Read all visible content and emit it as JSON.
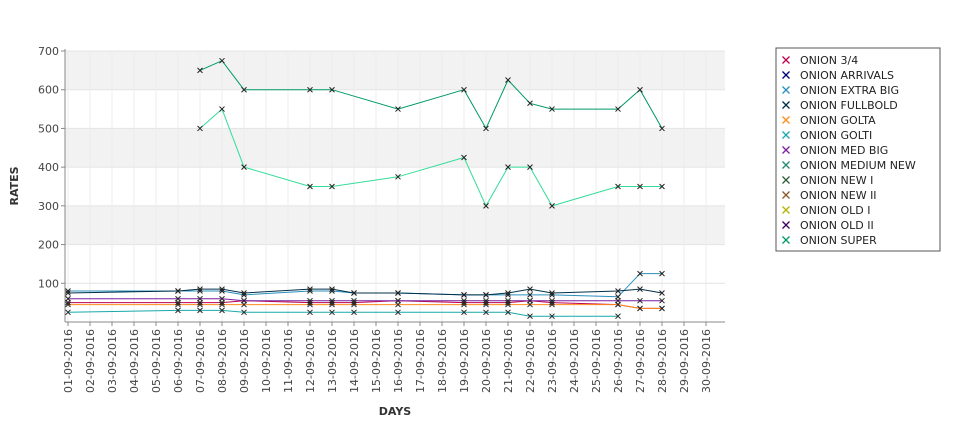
{
  "chart_data": {
    "type": "line",
    "title": "",
    "xlabel": "DAYS",
    "ylabel": "RATES",
    "ylim": [
      0,
      700
    ],
    "yticks": [
      100,
      200,
      300,
      400,
      500,
      600,
      700
    ],
    "grid": "alternating horizontal bands",
    "legend_position": "right",
    "x": [
      "01-09-2016",
      "02-09-2016",
      "03-09-2016",
      "04-09-2016",
      "05-09-2016",
      "06-09-2016",
      "07-09-2016",
      "08-09-2016",
      "09-09-2016",
      "10-09-2016",
      "11-09-2016",
      "12-09-2016",
      "13-09-2016",
      "14-09-2016",
      "15-09-2016",
      "16-09-2016",
      "17-09-2016",
      "18-09-2016",
      "19-09-2016",
      "20-09-2016",
      "21-09-2016",
      "22-09-2016",
      "23-09-2016",
      "24-09-2016",
      "25-09-2016",
      "26-09-2016",
      "27-09-2016",
      "28-09-2016",
      "29-09-2016",
      "30-09-2016"
    ],
    "series": [
      {
        "name": "ONION 3/4",
        "color": "#c0004e",
        "values": [
          50,
          null,
          null,
          null,
          null,
          50,
          50,
          50,
          55,
          null,
          null,
          50,
          50,
          50,
          null,
          55,
          null,
          null,
          50,
          50,
          50,
          55,
          50,
          null,
          null,
          45,
          35,
          35,
          null,
          null
        ]
      },
      {
        "name": "ONION ARRIVALS",
        "color": "#00007a",
        "values": [
          null,
          null,
          null,
          null,
          null,
          null,
          null,
          null,
          null,
          null,
          null,
          null,
          null,
          null,
          null,
          null,
          null,
          null,
          null,
          null,
          null,
          null,
          null,
          null,
          null,
          null,
          null,
          null,
          null,
          null
        ]
      },
      {
        "name": "ONION EXTRA BIG",
        "color": "#2a8fbd",
        "values": [
          80,
          null,
          null,
          null,
          null,
          80,
          80,
          80,
          70,
          null,
          null,
          80,
          80,
          75,
          null,
          75,
          null,
          null,
          70,
          70,
          70,
          70,
          70,
          null,
          null,
          65,
          125,
          125,
          null,
          null
        ]
      },
      {
        "name": "ONION FULLBOLD",
        "color": "#003049",
        "values": [
          75,
          null,
          null,
          null,
          null,
          80,
          85,
          85,
          75,
          null,
          null,
          85,
          85,
          75,
          null,
          75,
          null,
          null,
          70,
          70,
          75,
          85,
          75,
          null,
          null,
          80,
          85,
          75,
          null,
          null
        ]
      },
      {
        "name": "ONION GOLTA",
        "color": "#ff8c1a",
        "values": [
          45,
          null,
          null,
          null,
          null,
          45,
          45,
          45,
          45,
          null,
          null,
          45,
          45,
          45,
          null,
          45,
          null,
          null,
          45,
          45,
          45,
          45,
          45,
          null,
          null,
          45,
          35,
          35,
          null,
          null
        ]
      },
      {
        "name": "ONION GOLTI",
        "color": "#17a9a9",
        "values": [
          25,
          null,
          null,
          null,
          null,
          30,
          30,
          30,
          25,
          null,
          null,
          25,
          25,
          25,
          null,
          25,
          null,
          null,
          25,
          25,
          25,
          15,
          15,
          null,
          null,
          15,
          null,
          null,
          null,
          null
        ]
      },
      {
        "name": "ONION MED BIG",
        "color": "#7a1fa2",
        "values": [
          60,
          null,
          null,
          null,
          null,
          60,
          60,
          60,
          55,
          null,
          null,
          55,
          55,
          55,
          null,
          55,
          null,
          null,
          55,
          55,
          55,
          55,
          55,
          null,
          null,
          55,
          55,
          55,
          null,
          null
        ]
      },
      {
        "name": "ONION MEDIUM NEW",
        "color": "#1f8a70",
        "values": [
          null,
          null,
          null,
          null,
          null,
          null,
          null,
          null,
          null,
          null,
          null,
          null,
          null,
          null,
          null,
          null,
          null,
          null,
          null,
          null,
          null,
          null,
          null,
          null,
          null,
          null,
          null,
          null,
          null,
          null
        ]
      },
      {
        "name": "ONION NEW I",
        "color": "#2e5f3a",
        "values": [
          null,
          null,
          null,
          null,
          null,
          null,
          null,
          null,
          null,
          null,
          null,
          null,
          null,
          null,
          null,
          null,
          null,
          null,
          null,
          null,
          null,
          null,
          null,
          null,
          null,
          null,
          null,
          null,
          null,
          null
        ]
      },
      {
        "name": "ONION NEW II",
        "color": "#8a5a2b",
        "values": [
          null,
          null,
          null,
          null,
          null,
          null,
          null,
          null,
          null,
          null,
          null,
          null,
          null,
          null,
          null,
          null,
          null,
          null,
          null,
          null,
          null,
          null,
          null,
          null,
          null,
          null,
          null,
          null,
          null,
          null
        ]
      },
      {
        "name": "ONION OLD I",
        "color": "#b3b300",
        "values": [
          null,
          null,
          null,
          null,
          null,
          null,
          null,
          null,
          null,
          null,
          null,
          null,
          null,
          null,
          null,
          null,
          null,
          null,
          null,
          null,
          null,
          null,
          null,
          null,
          null,
          null,
          null,
          null,
          null,
          null
        ]
      },
      {
        "name": "ONION OLD II",
        "color": "#3d0066",
        "values": [
          null,
          null,
          null,
          null,
          null,
          null,
          null,
          null,
          null,
          null,
          null,
          null,
          null,
          null,
          null,
          null,
          null,
          null,
          null,
          null,
          null,
          null,
          null,
          null,
          null,
          null,
          null,
          null,
          null,
          null
        ]
      },
      {
        "name": "ONION SUPER",
        "color": "#009966",
        "values": [
          null,
          null,
          null,
          null,
          null,
          null,
          650,
          675,
          600,
          null,
          null,
          600,
          600,
          null,
          null,
          550,
          null,
          null,
          600,
          500,
          625,
          565,
          550,
          null,
          null,
          550,
          600,
          500,
          null,
          null
        ]
      },
      {
        "name": "",
        "color": "#33dd99",
        "values": [
          null,
          null,
          null,
          null,
          null,
          null,
          500,
          550,
          400,
          null,
          null,
          350,
          350,
          null,
          null,
          375,
          null,
          null,
          425,
          300,
          400,
          400,
          300,
          null,
          null,
          350,
          350,
          350,
          null,
          null
        ]
      }
    ]
  }
}
